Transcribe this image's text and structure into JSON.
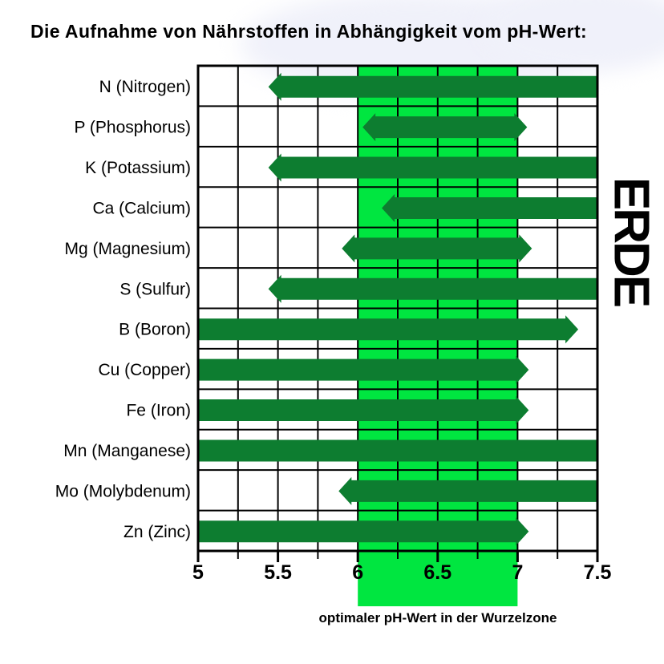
{
  "title": "Die Aufnahme von Nährstoffen in Abhängigkeit vom pH-Wert:",
  "side_label": "ERDE",
  "colors": {
    "bar_green": "#0d7d30",
    "zone_green": "#00e640",
    "grid_black": "#000000",
    "background": "#ffffff",
    "title_halo": "#f0f1fa"
  },
  "chart_data": {
    "type": "bar",
    "subtype": "horizontal-range-arrows",
    "xlim": [
      5,
      7.5
    ],
    "x_major_ticks": [
      5,
      5.5,
      6,
      6.5,
      7,
      7.5
    ],
    "x_tick_labels": [
      "5",
      "5.5",
      "6",
      "6.5",
      "7",
      "7.5"
    ],
    "x_minor_step": 0.25,
    "grid": true,
    "categories": [
      "N (Nitrogen)",
      "P (Phosphorus)",
      "K (Potassium)",
      "Ca (Calcium)",
      "Mg (Magnesium)",
      "S (Sulfur)",
      "B (Boron)",
      "Cu (Copper)",
      "Fe (Iron)",
      "Mn (Manganese)",
      "Mo (Molybdenum)",
      "Zn (Zinc)"
    ],
    "rows": [
      {
        "label": "N (Nitrogen)",
        "from": 5.44,
        "to": 7.5,
        "arrow_left": true,
        "arrow_right": false
      },
      {
        "label": "P (Phosphorus)",
        "from": 6.03,
        "to": 7.06,
        "arrow_left": true,
        "arrow_right": true
      },
      {
        "label": "K (Potassium)",
        "from": 5.44,
        "to": 7.5,
        "arrow_left": true,
        "arrow_right": false
      },
      {
        "label": "Ca (Calcium)",
        "from": 6.15,
        "to": 7.5,
        "arrow_left": true,
        "arrow_right": false
      },
      {
        "label": "Mg (Magnesium)",
        "from": 5.9,
        "to": 7.09,
        "arrow_left": true,
        "arrow_right": true
      },
      {
        "label": "S (Sulfur)",
        "from": 5.44,
        "to": 7.5,
        "arrow_left": true,
        "arrow_right": false
      },
      {
        "label": "B (Boron)",
        "from": 5.0,
        "to": 7.38,
        "arrow_left": false,
        "arrow_right": true
      },
      {
        "label": "Cu (Copper)",
        "from": 5.0,
        "to": 7.07,
        "arrow_left": false,
        "arrow_right": true
      },
      {
        "label": "Fe (Iron)",
        "from": 5.0,
        "to": 7.07,
        "arrow_left": false,
        "arrow_right": true
      },
      {
        "label": "Mn (Manganese)",
        "from": 5.0,
        "to": 7.5,
        "arrow_left": false,
        "arrow_right": false
      },
      {
        "label": "Mo (Molybdenum)",
        "from": 5.88,
        "to": 7.5,
        "arrow_left": true,
        "arrow_right": false
      },
      {
        "label": "Zn (Zinc)",
        "from": 5.0,
        "to": 7.07,
        "arrow_left": false,
        "arrow_right": true
      }
    ],
    "optimal_zone": {
      "from": 6,
      "to": 7,
      "label": "optimaler pH-Wert in der Wurzelzone"
    }
  }
}
